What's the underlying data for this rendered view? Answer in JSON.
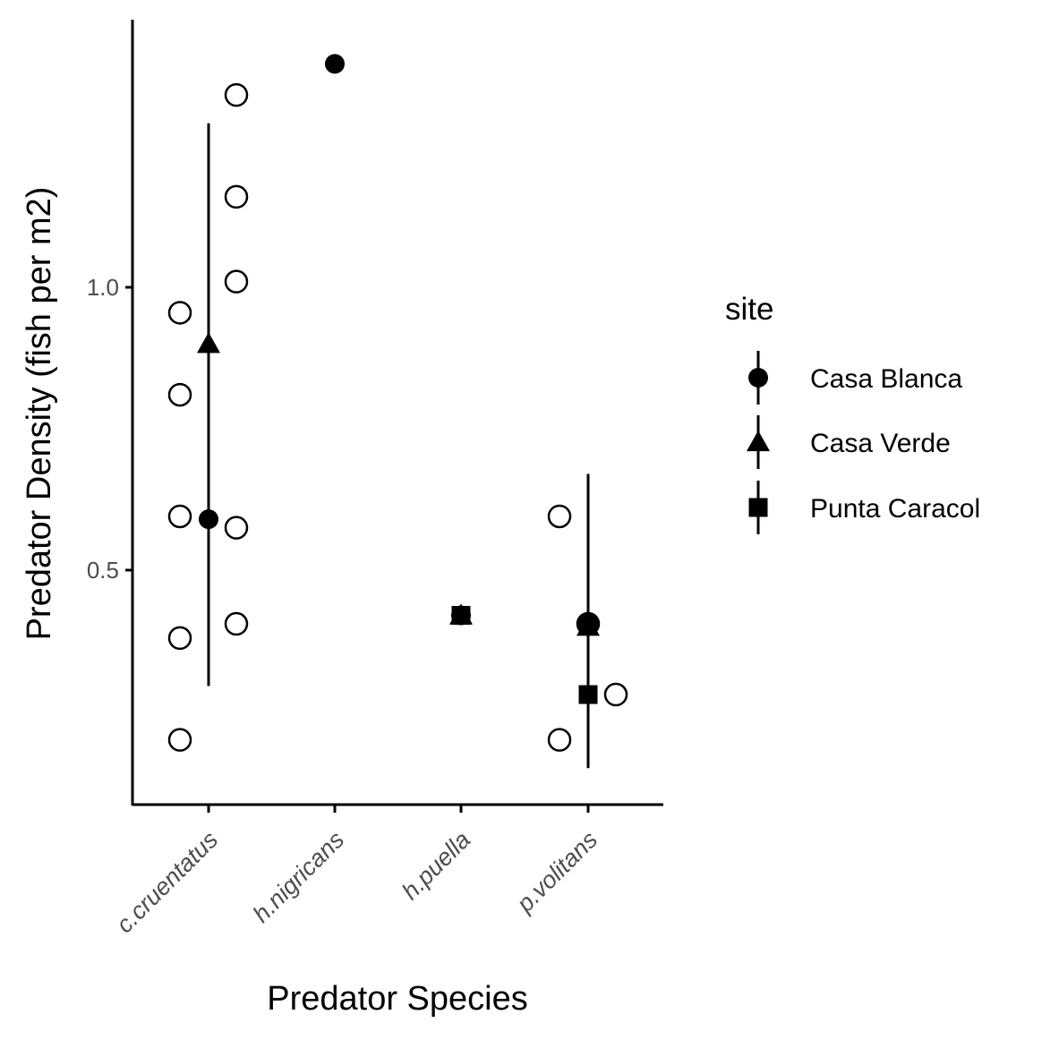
{
  "chart_data": {
    "type": "scatter",
    "xlabel": "Predator Species",
    "ylabel": "Predator Density (fish per m2)",
    "categories": [
      "c.cruentatus",
      "h.nigricans",
      "h.puella",
      "p.volitans"
    ],
    "yticks": [
      0.5,
      1.0
    ],
    "ytick_labels": [
      "0.5",
      "1.0"
    ],
    "ylim": [
      0.09,
      1.485
    ],
    "grid": false,
    "legend": {
      "title": "site",
      "position": "right",
      "entries": [
        "Casa Blanca",
        "Casa Verde",
        "Punta Caracol"
      ]
    },
    "raw_points": [
      {
        "category": "c.cruentatus",
        "side": "left",
        "y": 0.955
      },
      {
        "category": "c.cruentatus",
        "side": "left",
        "y": 0.81
      },
      {
        "category": "c.cruentatus",
        "side": "left",
        "y": 0.595
      },
      {
        "category": "c.cruentatus",
        "side": "left",
        "y": 0.38
      },
      {
        "category": "c.cruentatus",
        "side": "left",
        "y": 0.2
      },
      {
        "category": "c.cruentatus",
        "side": "right",
        "y": 1.34
      },
      {
        "category": "c.cruentatus",
        "side": "right",
        "y": 1.16
      },
      {
        "category": "c.cruentatus",
        "side": "right",
        "y": 1.01
      },
      {
        "category": "c.cruentatus",
        "side": "right",
        "y": 0.575
      },
      {
        "category": "c.cruentatus",
        "side": "right",
        "y": 0.405
      },
      {
        "category": "p.volitans",
        "side": "left",
        "y": 0.595
      },
      {
        "category": "p.volitans",
        "side": "left",
        "y": 0.2
      },
      {
        "category": "p.volitans",
        "side": "right",
        "y": 0.28
      },
      {
        "category": "p.volitans",
        "side": "center",
        "y": 0.405
      }
    ],
    "series": [
      {
        "name": "Casa Blanca",
        "shape": "circle",
        "points": [
          {
            "category": "c.cruentatus",
            "y": 0.59,
            "ymin": null,
            "ymax": null
          },
          {
            "category": "h.nigricans",
            "y": 1.395,
            "ymin": null,
            "ymax": null
          },
          {
            "category": "h.puella",
            "y": 0.42,
            "ymin": null,
            "ymax": null
          },
          {
            "category": "p.volitans",
            "y": 0.405,
            "ymin": null,
            "ymax": null
          }
        ]
      },
      {
        "name": "Casa Verde",
        "shape": "triangle",
        "points": [
          {
            "category": "c.cruentatus",
            "y": 0.9,
            "ymin": 0.295,
            "ymax": 1.29
          },
          {
            "category": "h.puella",
            "y": 0.42,
            "ymin": null,
            "ymax": null
          },
          {
            "category": "p.volitans",
            "y": 0.4,
            "ymin": null,
            "ymax": null
          }
        ]
      },
      {
        "name": "Punta Caracol",
        "shape": "square",
        "points": [
          {
            "category": "h.puella",
            "y": 0.42,
            "ymin": null,
            "ymax": null
          },
          {
            "category": "p.volitans",
            "y": 0.28,
            "ymin": 0.15,
            "ymax": 0.67
          }
        ]
      }
    ]
  }
}
